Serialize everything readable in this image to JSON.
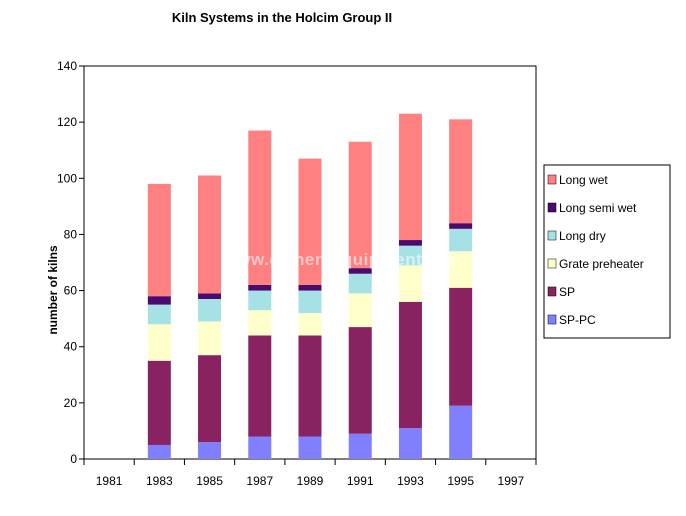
{
  "watermark": "www.cementequipment.org",
  "chart_data": {
    "type": "bar",
    "stacked": true,
    "title": "Kiln Systems in the Holcim Group II",
    "xlabel": "",
    "ylabel": "number of kilns",
    "ylim": [
      0,
      140
    ],
    "yticks": [
      0,
      20,
      40,
      60,
      80,
      100,
      120,
      140
    ],
    "categories": [
      "1981",
      "1983",
      "1985",
      "1987",
      "1989",
      "1991",
      "1993",
      "1995",
      "1997"
    ],
    "legend_position": "right",
    "grid": false,
    "series": [
      {
        "name": "SP-PC",
        "color": "#8080ff",
        "values": [
          0,
          5,
          6,
          8,
          8,
          9,
          11,
          19,
          0
        ]
      },
      {
        "name": "SP",
        "color": "#882260",
        "values": [
          0,
          30,
          31,
          36,
          36,
          38,
          45,
          42,
          0
        ]
      },
      {
        "name": "Grate preheater",
        "color": "#ffffcc",
        "values": [
          0,
          13,
          12,
          9,
          8,
          12,
          13,
          13,
          0
        ]
      },
      {
        "name": "Long dry",
        "color": "#a6e1e6",
        "values": [
          0,
          7,
          8,
          7,
          8,
          7,
          7,
          8,
          0
        ]
      },
      {
        "name": "Long semi wet",
        "color": "#4b0a6e",
        "values": [
          0,
          3,
          2,
          2,
          2,
          2,
          2,
          2,
          0
        ]
      },
      {
        "name": "Long wet",
        "color": "#ff8080",
        "values": [
          0,
          40,
          42,
          55,
          45,
          45,
          45,
          37,
          0
        ]
      }
    ]
  }
}
